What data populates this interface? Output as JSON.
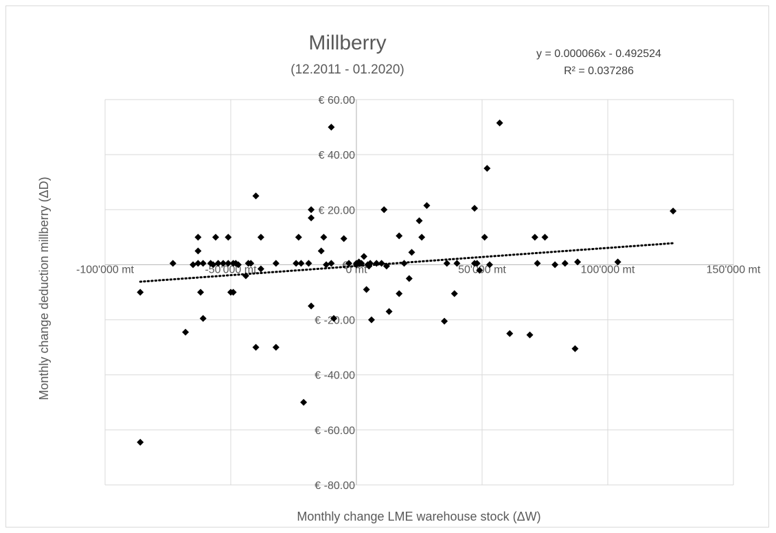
{
  "chart_data": {
    "type": "scatter",
    "title": "Millberry",
    "subtitle": "(12.2011 - 01.2020)",
    "xlabel": "Monthly change LME warehouse stock (ΔW)",
    "ylabel": "Monthly change deduction millberry (ΔD)",
    "xlim": [
      -100000,
      150000
    ],
    "ylim": [
      -80,
      60
    ],
    "x_ticks": [
      {
        "value": -100000,
        "label": "-100'000 mt"
      },
      {
        "value": -50000,
        "label": "-50'000 mt"
      },
      {
        "value": 0,
        "label": "0 mt"
      },
      {
        "value": 50000,
        "label": "50'000 mt"
      },
      {
        "value": 100000,
        "label": "100'000 mt"
      },
      {
        "value": 150000,
        "label": "150'000 mt"
      }
    ],
    "y_ticks": [
      {
        "value": 60,
        "label": "€ 60.00"
      },
      {
        "value": 40,
        "label": "€ 40.00"
      },
      {
        "value": 20,
        "label": "€ 20.00"
      },
      {
        "value": 0,
        "label": "€ -"
      },
      {
        "value": -20,
        "label": "€ -20.00"
      },
      {
        "value": -40,
        "label": "€ -40.00"
      },
      {
        "value": -60,
        "label": "€ -60.00"
      },
      {
        "value": -80,
        "label": "€ -80.00"
      }
    ],
    "grid": {
      "vertical": true,
      "horizontal": true
    },
    "trendline": {
      "equation": "y = 0.000066x - 0.492524",
      "r_squared": "R² = 0.037286",
      "slope": 6.6e-05,
      "intercept": -0.492524,
      "x_range": [
        -86000,
        126000
      ],
      "style": "dotted"
    },
    "marker_color": "#000000",
    "points": [
      [
        -86000,
        -10
      ],
      [
        -86000,
        -64.5
      ],
      [
        -73000,
        0.5
      ],
      [
        -68000,
        -24.5
      ],
      [
        -65000,
        0
      ],
      [
        -63000,
        10
      ],
      [
        -63000,
        5
      ],
      [
        -63000,
        0.5
      ],
      [
        -62000,
        -10
      ],
      [
        -61000,
        -19.5
      ],
      [
        -61000,
        0.5
      ],
      [
        -58000,
        0.5
      ],
      [
        -57000,
        0
      ],
      [
        -56000,
        10
      ],
      [
        -55000,
        0.5
      ],
      [
        -53000,
        0.5
      ],
      [
        -51000,
        10
      ],
      [
        -51000,
        0.5
      ],
      [
        -50000,
        -10
      ],
      [
        -49000,
        0.5
      ],
      [
        -49000,
        -10
      ],
      [
        -48000,
        0.5
      ],
      [
        -47000,
        0
      ],
      [
        -44000,
        -4
      ],
      [
        -43000,
        0.5
      ],
      [
        -42000,
        0.5
      ],
      [
        -40000,
        25
      ],
      [
        -40000,
        -30
      ],
      [
        -38000,
        10
      ],
      [
        -38000,
        -1.5
      ],
      [
        -32000,
        -30
      ],
      [
        -32000,
        0.5
      ],
      [
        -24000,
        0.5
      ],
      [
        -23000,
        10
      ],
      [
        -22000,
        0.5
      ],
      [
        -21000,
        -50
      ],
      [
        -19000,
        0.5
      ],
      [
        -18000,
        20
      ],
      [
        -18000,
        17
      ],
      [
        -18000,
        -15
      ],
      [
        -14000,
        5
      ],
      [
        -13000,
        10
      ],
      [
        -12000,
        0
      ],
      [
        -10000,
        0.5
      ],
      [
        -10000,
        50
      ],
      [
        -9000,
        -19.5
      ],
      [
        -5000,
        9.5
      ],
      [
        -3000,
        0.5
      ],
      [
        0,
        0
      ],
      [
        0,
        0.5
      ],
      [
        1000,
        1
      ],
      [
        2000,
        0.5
      ],
      [
        3000,
        3
      ],
      [
        4000,
        -9
      ],
      [
        4500,
        0
      ],
      [
        5000,
        -0.5
      ],
      [
        5500,
        0.5
      ],
      [
        6000,
        -20
      ],
      [
        8000,
        0.5
      ],
      [
        10000,
        0.5
      ],
      [
        11000,
        20
      ],
      [
        12000,
        -0.5
      ],
      [
        13000,
        -17
      ],
      [
        17000,
        10.5
      ],
      [
        17000,
        -10.5
      ],
      [
        19000,
        0.5
      ],
      [
        21000,
        -5
      ],
      [
        22000,
        4.5
      ],
      [
        25000,
        16
      ],
      [
        26000,
        10
      ],
      [
        28000,
        21.5
      ],
      [
        35000,
        -20.5
      ],
      [
        36000,
        0.5
      ],
      [
        39000,
        -10.5
      ],
      [
        40000,
        0.5
      ],
      [
        47000,
        0.5
      ],
      [
        47000,
        20.5
      ],
      [
        48000,
        0.5
      ],
      [
        49000,
        -2
      ],
      [
        51000,
        10
      ],
      [
        52000,
        35
      ],
      [
        53000,
        0
      ],
      [
        57000,
        51.5
      ],
      [
        61000,
        -25
      ],
      [
        69000,
        -25.5
      ],
      [
        71000,
        10
      ],
      [
        72000,
        0.5
      ],
      [
        75000,
        10
      ],
      [
        79000,
        0
      ],
      [
        83000,
        0.5
      ],
      [
        87000,
        -30.5
      ],
      [
        88000,
        1
      ],
      [
        104000,
        1
      ],
      [
        126000,
        19.5
      ]
    ]
  }
}
